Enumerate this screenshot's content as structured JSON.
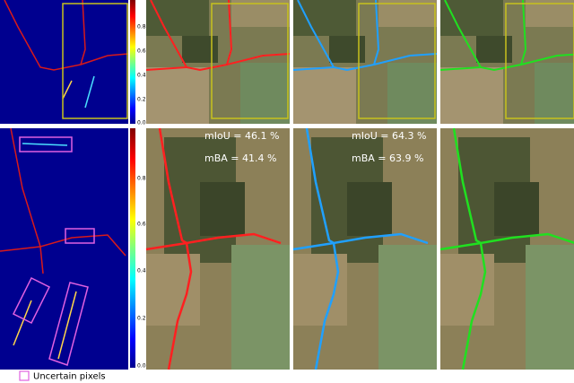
{
  "colorbar_top": {
    "ticks": [
      "0.0",
      "0.2",
      "0.4",
      "0.6",
      "0.8"
    ]
  },
  "colorbar_bottom": {
    "ticks": [
      "0.0",
      "0.2",
      "0.4",
      "0.6",
      "0.8"
    ]
  },
  "overlays": [
    {
      "miou": "mIoU = 46.1 %",
      "mba": "mBA = 41.4 %"
    },
    {
      "miou": "mIoU = 64.3 %",
      "mba": "mBA = 63.9 %"
    }
  ],
  "legend": {
    "label": "Uncertain pixels"
  }
}
